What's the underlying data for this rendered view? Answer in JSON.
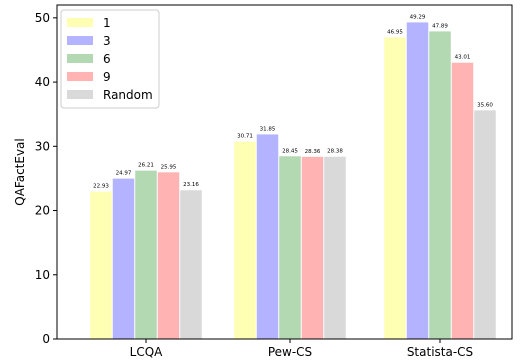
{
  "chart_data": {
    "type": "bar",
    "categories": [
      "LCQA",
      "Pew-CS",
      "Statista-CS"
    ],
    "series": [
      {
        "name": "1",
        "color": "#ffffb3",
        "values": [
          22.93,
          30.71,
          46.95
        ]
      },
      {
        "name": "3",
        "color": "#b3b3ff",
        "values": [
          24.97,
          31.85,
          49.29
        ]
      },
      {
        "name": "6",
        "color": "#b3d9b3",
        "values": [
          26.21,
          28.45,
          47.89
        ]
      },
      {
        "name": "9",
        "color": "#ffb3b3",
        "values": [
          25.95,
          28.36,
          43.01
        ]
      },
      {
        "name": "Random",
        "color": "#d9d9d9",
        "values": [
          23.16,
          28.38,
          35.6
        ]
      }
    ],
    "data_labels": [
      [
        "22.93",
        "30.71",
        "46.95"
      ],
      [
        "24.97",
        "31.85",
        "49.29"
      ],
      [
        "26.21",
        "28.45",
        "47.89"
      ],
      [
        "25.95",
        "28.36",
        "43.01"
      ],
      [
        "23.16",
        "28.38",
        "35.60"
      ]
    ],
    "ylabel": "QAFactEval",
    "xlabel": "",
    "ylim": [
      0,
      52
    ],
    "yticks": [
      0,
      10,
      20,
      30,
      40,
      50
    ],
    "ytick_labels": [
      "0",
      "10",
      "20",
      "30",
      "40",
      "50"
    ],
    "legend_position": "top-left",
    "grid": false
  }
}
